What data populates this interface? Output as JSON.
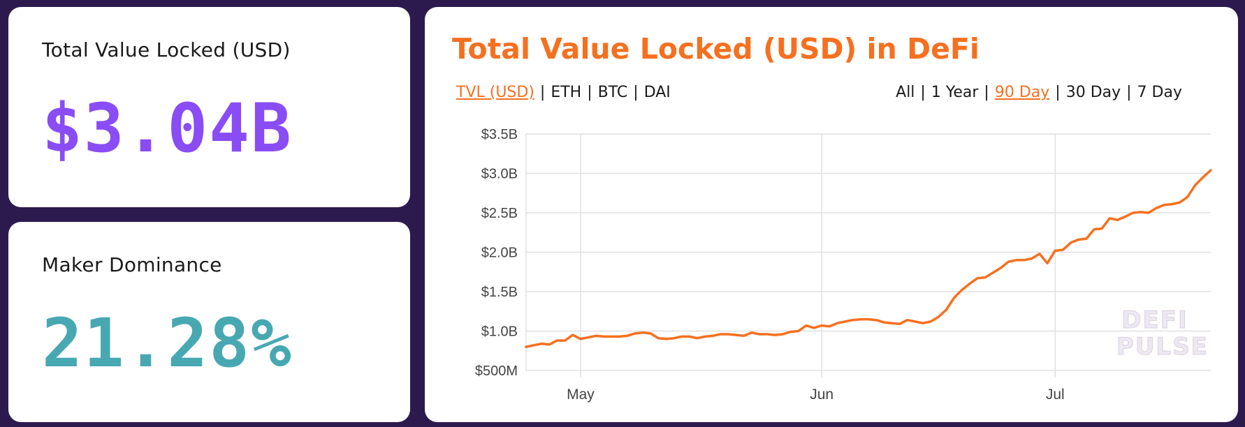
{
  "stats": {
    "tvl": {
      "label": "Total Value Locked (USD)",
      "value": "$3.04B",
      "color": "#8a4cf5"
    },
    "dominance": {
      "label": "Maker Dominance",
      "value": "21.28%",
      "color": "#47a8b2"
    }
  },
  "chart_card": {
    "title": "Total Value Locked (USD) in DeFi",
    "units": [
      {
        "label": "TVL (USD)",
        "active": true
      },
      {
        "label": "ETH",
        "active": false
      },
      {
        "label": "BTC",
        "active": false
      },
      {
        "label": "DAI",
        "active": false
      }
    ],
    "ranges": [
      {
        "label": "All",
        "active": false
      },
      {
        "label": "1 Year",
        "active": false
      },
      {
        "label": "90 Day",
        "active": true
      },
      {
        "label": "30 Day",
        "active": false
      },
      {
        "label": "7 Day",
        "active": false
      }
    ],
    "watermark": [
      "DEFI",
      "PULSE"
    ]
  },
  "colors": {
    "background": "#2c1a4f",
    "accent": "#f5701f",
    "grid": "#e0e0e0"
  },
  "chart_data": {
    "type": "line",
    "title": "Total Value Locked (USD) in DeFi",
    "xlabel": "",
    "ylabel": "",
    "ylim": [
      0.5,
      3.5
    ],
    "y_unit": "billion USD",
    "y_ticks": [
      {
        "value": 3.5,
        "label": "$3.5B"
      },
      {
        "value": 3.0,
        "label": "$3.0B"
      },
      {
        "value": 2.5,
        "label": "$2.5B"
      },
      {
        "value": 2.0,
        "label": "$2.0B"
      },
      {
        "value": 1.5,
        "label": "$1.5B"
      },
      {
        "value": 1.0,
        "label": "$1.0B"
      },
      {
        "value": 0.5,
        "label": "$500M"
      }
    ],
    "x_range_days": [
      0,
      88
    ],
    "x_ticks": [
      {
        "day": 7,
        "label": "May"
      },
      {
        "day": 38,
        "label": "Jun"
      },
      {
        "day": 68,
        "label": "Jul"
      }
    ],
    "series": [
      {
        "name": "TVL (USD)",
        "color": "#f5701f",
        "days": [
          0,
          1,
          2,
          3,
          4,
          5,
          6,
          7,
          8,
          9,
          10,
          11,
          12,
          13,
          14,
          15,
          16,
          17,
          18,
          19,
          20,
          21,
          22,
          23,
          24,
          25,
          26,
          27,
          28,
          29,
          30,
          31,
          32,
          33,
          34,
          35,
          36,
          37,
          38,
          39,
          40,
          41,
          42,
          43,
          44,
          45,
          46,
          47,
          48,
          49,
          50,
          51,
          52,
          53,
          54,
          55,
          56,
          57,
          58,
          59,
          60,
          61,
          62,
          63,
          64,
          65,
          66,
          67,
          68,
          69,
          70,
          71,
          72,
          73,
          74,
          75,
          76,
          77,
          78,
          79,
          80,
          81,
          82,
          83,
          84,
          85,
          86,
          87,
          88
        ],
        "values": [
          0.8,
          0.82,
          0.84,
          0.83,
          0.88,
          0.88,
          0.95,
          0.9,
          0.92,
          0.94,
          0.93,
          0.93,
          0.93,
          0.94,
          0.97,
          0.98,
          0.97,
          0.91,
          0.9,
          0.91,
          0.93,
          0.93,
          0.91,
          0.93,
          0.94,
          0.96,
          0.96,
          0.95,
          0.94,
          0.98,
          0.96,
          0.96,
          0.95,
          0.96,
          0.99,
          1.0,
          1.07,
          1.04,
          1.07,
          1.06,
          1.1,
          1.12,
          1.14,
          1.15,
          1.15,
          1.14,
          1.11,
          1.1,
          1.09,
          1.14,
          1.12,
          1.1,
          1.12,
          1.18,
          1.27,
          1.42,
          1.52,
          1.6,
          1.67,
          1.68,
          1.74,
          1.8,
          1.88,
          1.9,
          1.9,
          1.92,
          1.98,
          1.86,
          2.02,
          2.03,
          2.12,
          2.16,
          2.17,
          2.29,
          2.3,
          2.43,
          2.41,
          2.45,
          2.5,
          2.51,
          2.5,
          2.56,
          2.6,
          2.61,
          2.63,
          2.7,
          2.85,
          2.95,
          3.04
        ]
      }
    ]
  }
}
